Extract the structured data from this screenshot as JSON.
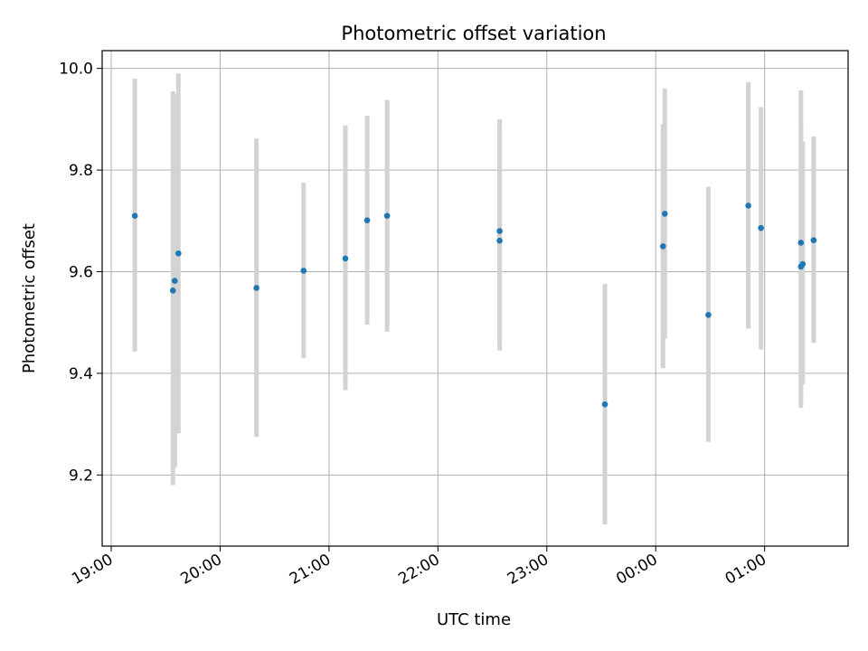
{
  "chart_data": {
    "type": "scatter",
    "title": "Photometric offset variation",
    "xlabel": "UTC time",
    "ylabel": "Photometric offset",
    "xlim": [
      "18:55",
      "01:46"
    ],
    "ylim": [
      9.06,
      10.035
    ],
    "xticks": [
      "19:00",
      "20:00",
      "21:00",
      "22:00",
      "23:00",
      "00:00",
      "01:00"
    ],
    "yticks": [
      9.2,
      9.4,
      9.6,
      9.8,
      10.0
    ],
    "ytick_labels": [
      "9.2",
      "9.4",
      "9.6",
      "9.8",
      "10.0"
    ],
    "grid": true,
    "point_color": "#1f77b4",
    "errorbar_color": "#d3d3d3",
    "points": [
      {
        "time": "19:13",
        "y": 9.71,
        "low": 9.443,
        "high": 9.98
      },
      {
        "time": "19:34",
        "y": 9.563,
        "low": 9.18,
        "high": 9.955
      },
      {
        "time": "19:35",
        "y": 9.582,
        "low": 9.215,
        "high": 9.95
      },
      {
        "time": "19:37",
        "y": 9.636,
        "low": 9.282,
        "high": 9.99
      },
      {
        "time": "20:20",
        "y": 9.568,
        "low": 9.275,
        "high": 9.862
      },
      {
        "time": "20:46",
        "y": 9.602,
        "low": 9.43,
        "high": 9.775
      },
      {
        "time": "21:09",
        "y": 9.626,
        "low": 9.367,
        "high": 9.888
      },
      {
        "time": "21:21",
        "y": 9.701,
        "low": 9.496,
        "high": 9.907
      },
      {
        "time": "21:32",
        "y": 9.71,
        "low": 9.482,
        "high": 9.938
      },
      {
        "time": "22:34",
        "y": 9.68,
        "low": 9.46,
        "high": 9.9
      },
      {
        "time": "22:34",
        "y": 9.661,
        "low": 9.445,
        "high": 9.88
      },
      {
        "time": "23:32",
        "y": 9.339,
        "low": 9.103,
        "high": 9.576
      },
      {
        "time": "00:04",
        "y": 9.65,
        "low": 9.41,
        "high": 9.89
      },
      {
        "time": "00:05",
        "y": 9.714,
        "low": 9.468,
        "high": 9.96
      },
      {
        "time": "00:29",
        "y": 9.515,
        "low": 9.265,
        "high": 9.767
      },
      {
        "time": "00:51",
        "y": 9.73,
        "low": 9.488,
        "high": 9.973
      },
      {
        "time": "00:58",
        "y": 9.686,
        "low": 9.447,
        "high": 9.924
      },
      {
        "time": "01:20",
        "y": 9.657,
        "low": 9.332,
        "high": 9.957
      },
      {
        "time": "01:20",
        "y": 9.61,
        "low": 9.36,
        "high": 9.89
      },
      {
        "time": "01:21",
        "y": 9.615,
        "low": 9.378,
        "high": 9.856
      },
      {
        "time": "01:27",
        "y": 9.662,
        "low": 9.46,
        "high": 9.866
      }
    ]
  }
}
